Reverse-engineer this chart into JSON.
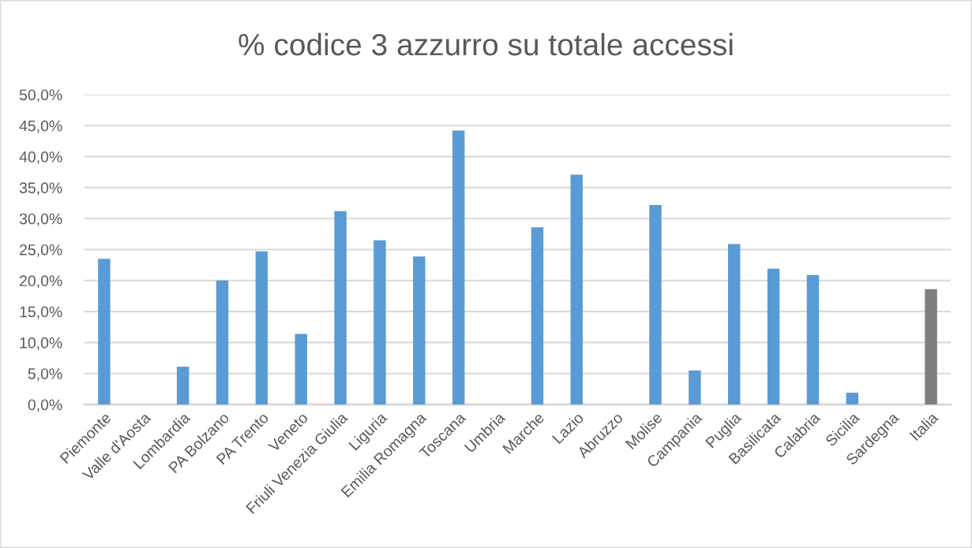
{
  "chart_data": {
    "type": "bar",
    "title": "% codice 3 azzurro su totale accessi",
    "categories": [
      "Piemonte",
      "Valle d'Aosta",
      "Lombardia",
      "PA Bolzano",
      "PA Trento",
      "Veneto",
      "Friuli Venezia Giulia",
      "Liguria",
      "Emilia Romagna",
      "Toscana",
      "Umbria",
      "Marche",
      "Lazio",
      "Abruzzo",
      "Molise",
      "Campania",
      "Puglia",
      "Basilicata",
      "Calabria",
      "Sicilia",
      "Sardegna",
      "Italia"
    ],
    "values": [
      23.5,
      null,
      6.1,
      20.0,
      24.7,
      11.4,
      31.2,
      26.5,
      23.9,
      44.2,
      null,
      28.6,
      37.1,
      null,
      32.2,
      5.5,
      25.9,
      21.9,
      20.9,
      1.9,
      null,
      18.6
    ],
    "colors": [
      "#5b9bd5",
      "#5b9bd5",
      "#5b9bd5",
      "#5b9bd5",
      "#5b9bd5",
      "#5b9bd5",
      "#5b9bd5",
      "#5b9bd5",
      "#5b9bd5",
      "#5b9bd5",
      "#5b9bd5",
      "#5b9bd5",
      "#5b9bd5",
      "#5b9bd5",
      "#5b9bd5",
      "#5b9bd5",
      "#5b9bd5",
      "#5b9bd5",
      "#5b9bd5",
      "#5b9bd5",
      "#5b9bd5",
      "#7f7f7f"
    ],
    "ylim": [
      0,
      50
    ],
    "yticks": [
      {
        "value": 0,
        "label": "0,0%"
      },
      {
        "value": 5,
        "label": "5,0%"
      },
      {
        "value": 10,
        "label": "10,0%"
      },
      {
        "value": 15,
        "label": "15,0%"
      },
      {
        "value": 20,
        "label": "20,0%"
      },
      {
        "value": 25,
        "label": "25,0%"
      },
      {
        "value": 30,
        "label": "30,0%"
      },
      {
        "value": 35,
        "label": "35,0%"
      },
      {
        "value": 40,
        "label": "40,0%"
      },
      {
        "value": 45,
        "label": "45,0%"
      },
      {
        "value": 50,
        "label": "50,0%"
      }
    ],
    "grid": "y"
  }
}
